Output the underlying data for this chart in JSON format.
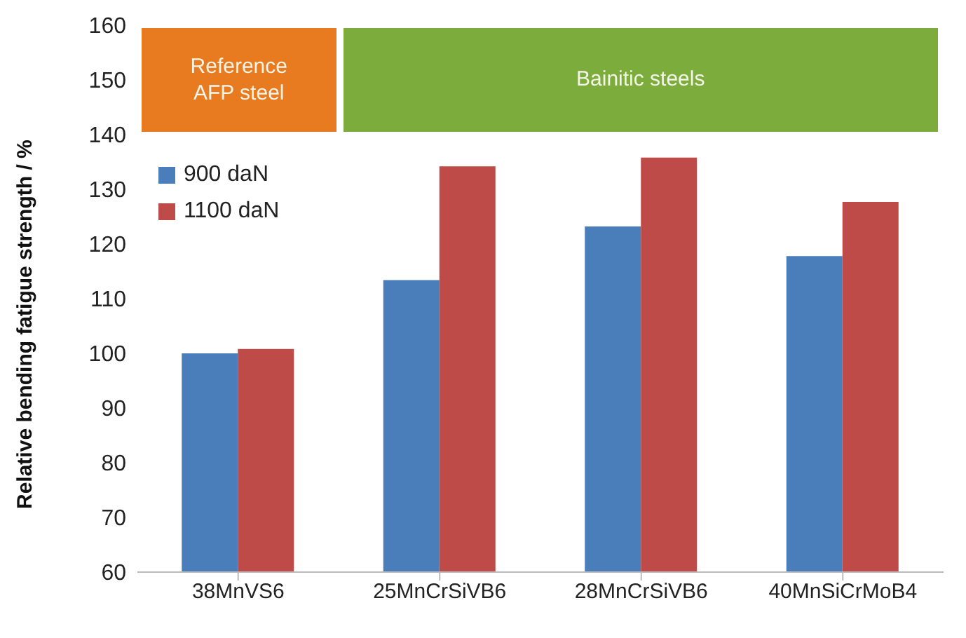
{
  "chart_data": {
    "type": "bar",
    "ylabel": "Relative bending fatigue strength / %",
    "categories": [
      "38MnVS6",
      "25MnCrSiVB6",
      "28MnCrSiVB6",
      "40MnSiCrMoB4"
    ],
    "series": [
      {
        "name": "900 daN",
        "color": "#4a7ebb",
        "values": [
          100,
          113.4,
          123.2,
          117.8
        ]
      },
      {
        "name": "1100 daN",
        "color": "#be4b48",
        "values": [
          100.8,
          134.2,
          135.8,
          127.7
        ]
      }
    ],
    "ylim": [
      60,
      160
    ],
    "yticks": [
      60,
      70,
      80,
      90,
      100,
      110,
      120,
      130,
      140,
      150,
      160
    ],
    "grid": false,
    "legend": "top left",
    "annotations": [
      "Reference AFP steel",
      "Bainitic steels"
    ]
  }
}
